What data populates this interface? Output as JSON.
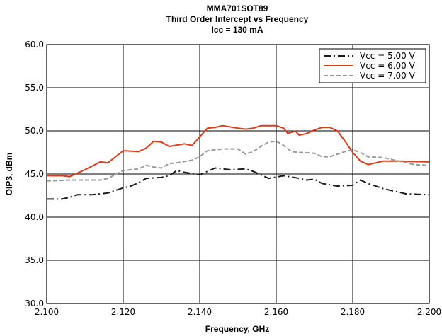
{
  "chart_data": {
    "type": "line",
    "title_lines": [
      "MMA701SOT89",
      "Third Order Intercept vs Frequency",
      "Icc = 130 mA"
    ],
    "xlabel": "Frequency, GHz",
    "ylabel": "OIP3, dBm",
    "xlim": [
      2.1,
      2.2
    ],
    "ylim": [
      30,
      60
    ],
    "x_ticks": [
      "2.100",
      "2.120",
      "2.140",
      "2.160",
      "2.180",
      "2.200"
    ],
    "y_ticks": [
      "30.0",
      "35.0",
      "40.0",
      "45.0",
      "50.0",
      "55.0",
      "60.0"
    ],
    "grid": true,
    "legend_position": "top-right",
    "series": [
      {
        "name": "Vcc = 5.00 V",
        "color": "#1a1a1a",
        "dash": "dash-dot",
        "x": [
          2.1,
          2.104,
          2.106,
          2.108,
          2.112,
          2.116,
          2.118,
          2.12,
          2.122,
          2.124,
          2.126,
          2.13,
          2.132,
          2.134,
          2.136,
          2.14,
          2.142,
          2.144,
          2.148,
          2.152,
          2.154,
          2.158,
          2.162,
          2.166,
          2.168,
          2.17,
          2.172,
          2.176,
          2.18,
          2.182,
          2.184,
          2.188,
          2.19,
          2.194,
          2.2
        ],
        "values": [
          42.1,
          42.1,
          42.3,
          42.6,
          42.6,
          42.8,
          43.1,
          43.4,
          43.6,
          44.0,
          44.5,
          44.6,
          44.8,
          45.4,
          45.2,
          44.9,
          45.3,
          45.7,
          45.5,
          45.6,
          45.3,
          44.5,
          44.8,
          44.5,
          44.3,
          44.4,
          43.9,
          43.6,
          43.7,
          44.3,
          43.9,
          43.3,
          43.1,
          42.7,
          42.6
        ]
      },
      {
        "name": "Vcc = 6.00 V",
        "color": "#e03a17",
        "dash": "solid",
        "x": [
          2.1,
          2.104,
          2.106,
          2.11,
          2.114,
          2.116,
          2.118,
          2.12,
          2.124,
          2.126,
          2.128,
          2.13,
          2.132,
          2.136,
          2.138,
          2.14,
          2.142,
          2.144,
          2.146,
          2.15,
          2.152,
          2.154,
          2.156,
          2.16,
          2.162,
          2.163,
          2.165,
          2.166,
          2.168,
          2.17,
          2.172,
          2.174,
          2.176,
          2.178,
          2.18,
          2.182,
          2.184,
          2.188,
          2.192,
          2.2
        ],
        "values": [
          44.8,
          44.8,
          44.7,
          45.5,
          46.4,
          46.3,
          47.0,
          47.7,
          47.6,
          48.0,
          48.8,
          48.7,
          48.2,
          48.5,
          48.3,
          49.3,
          50.3,
          50.4,
          50.6,
          50.3,
          50.2,
          50.3,
          50.6,
          50.6,
          50.3,
          49.7,
          50.0,
          49.5,
          49.7,
          50.1,
          50.4,
          50.4,
          50.0,
          48.8,
          47.5,
          46.5,
          46.1,
          46.5,
          46.5,
          46.4
        ]
      },
      {
        "name": "Vcc = 7.00 V",
        "color": "#999999",
        "dash": "dashed",
        "x": [
          2.1,
          2.106,
          2.11,
          2.114,
          2.116,
          2.12,
          2.124,
          2.126,
          2.128,
          2.13,
          2.132,
          2.134,
          2.138,
          2.14,
          2.142,
          2.144,
          2.146,
          2.15,
          2.152,
          2.154,
          2.156,
          2.158,
          2.16,
          2.162,
          2.164,
          2.166,
          2.17,
          2.172,
          2.174,
          2.178,
          2.18,
          2.182,
          2.184,
          2.188,
          2.192,
          2.196,
          2.2
        ],
        "values": [
          44.2,
          44.3,
          44.3,
          44.3,
          44.5,
          45.4,
          45.6,
          46.0,
          45.8,
          45.7,
          46.2,
          46.3,
          46.6,
          47.0,
          47.7,
          47.8,
          47.9,
          47.9,
          47.3,
          47.6,
          48.2,
          48.7,
          48.8,
          48.3,
          47.6,
          47.5,
          47.4,
          47.0,
          47.0,
          47.6,
          47.8,
          47.5,
          47.0,
          46.9,
          46.5,
          46.1,
          46.0
        ]
      }
    ]
  }
}
